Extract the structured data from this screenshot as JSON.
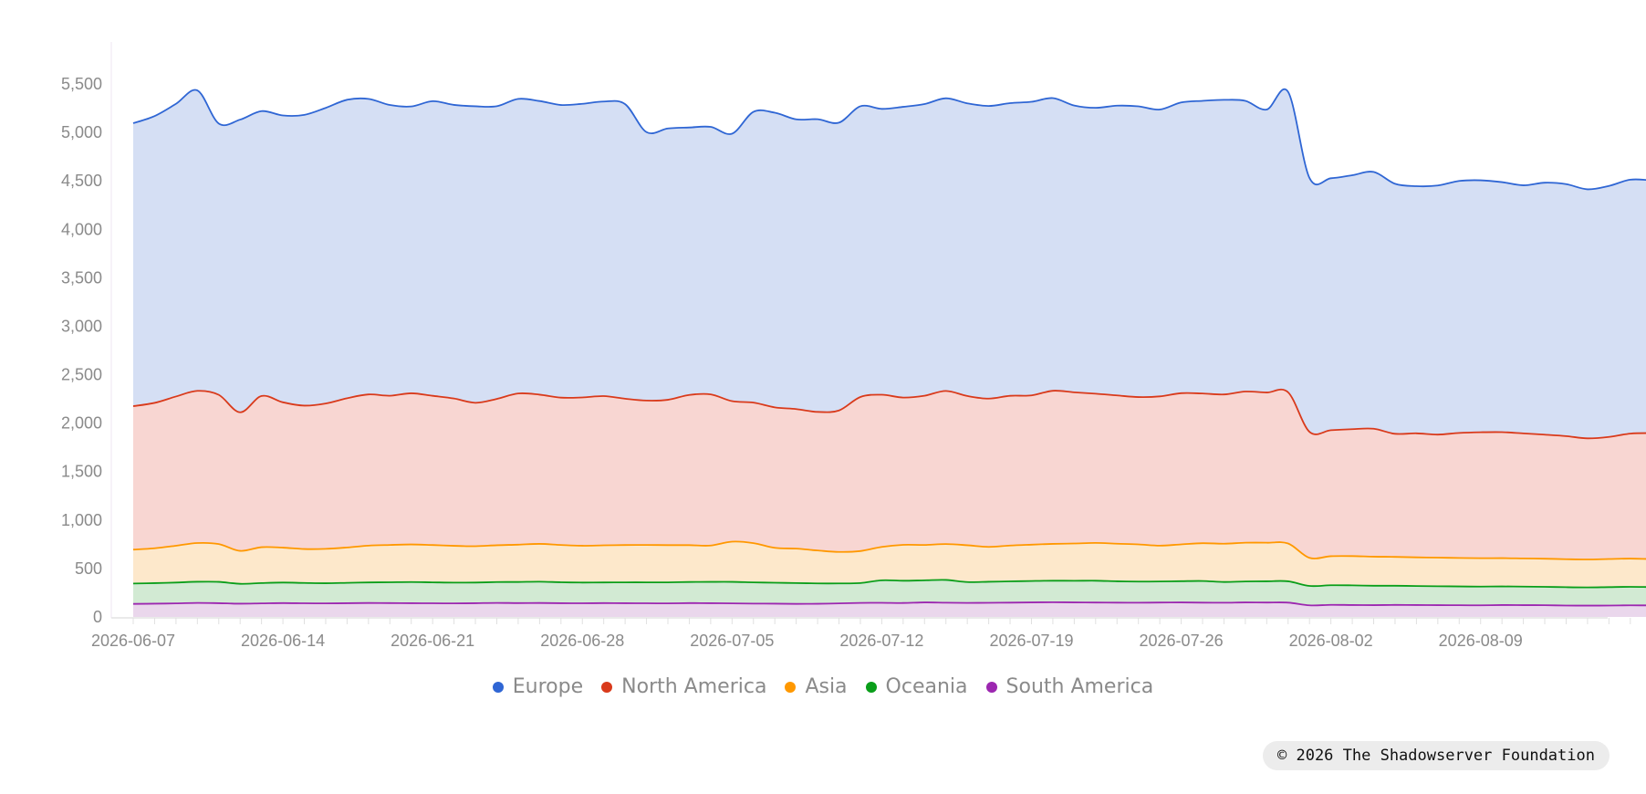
{
  "chart_data": {
    "type": "area",
    "stacked": true,
    "x_start": "2026-06-07",
    "x_end": "2026-08-12",
    "x_ticks": [
      "2026-06-07",
      "2026-06-14",
      "2026-06-21",
      "2026-06-28",
      "2026-07-05",
      "2026-07-12",
      "2026-07-19",
      "2026-07-26",
      "2026-08-02",
      "2026-08-09"
    ],
    "y_ticks": [
      "0",
      "500",
      "1,000",
      "1,500",
      "2,000",
      "2,500",
      "3,000",
      "3,500",
      "4,000",
      "4,500",
      "5,000",
      "5,500"
    ],
    "ylim": [
      0,
      5900
    ],
    "legend_position": "bottom",
    "series": [
      {
        "name": "South America",
        "color": "#9c27b0",
        "fill": "#ead7ec",
        "values": [
          135,
          137,
          140,
          145,
          142,
          137,
          140,
          143,
          141,
          140,
          142,
          144,
          143,
          142,
          141,
          140,
          142,
          145,
          143,
          144,
          142,
          141,
          143,
          142,
          141,
          140,
          143,
          142,
          140,
          138,
          137,
          135,
          136,
          140,
          145,
          146,
          144,
          150,
          147,
          145,
          146,
          148,
          150,
          152,
          150,
          149,
          148,
          147,
          149,
          150,
          148,
          147,
          150,
          149,
          148,
          120,
          125,
          123,
          122,
          124,
          123,
          122,
          121,
          120,
          123,
          122,
          121,
          118,
          117,
          118,
          120,
          119,
          118
        ]
      },
      {
        "name": "Oceania",
        "color": "#0a9e1a",
        "fill": "#d2ead3",
        "values": [
          210,
          212,
          215,
          218,
          220,
          205,
          210,
          212,
          210,
          208,
          210,
          212,
          215,
          218,
          216,
          214,
          213,
          215,
          218,
          220,
          216,
          214,
          213,
          215,
          216,
          217,
          218,
          220,
          222,
          219,
          216,
          215,
          210,
          206,
          205,
          232,
          230,
          228,
          235,
          215,
          217,
          219,
          221,
          222,
          223,
          225,
          220,
          218,
          217,
          219,
          223,
          214,
          216,
          219,
          220,
          200,
          202,
          203,
          200,
          198,
          196,
          195,
          194,
          193,
          192,
          191,
          190,
          189,
          188,
          190,
          191,
          189,
          188
        ]
      },
      {
        "name": "Asia",
        "color": "#ff9800",
        "fill": "#fde8cb",
        "values": [
          350,
          360,
          380,
          400,
          390,
          340,
          370,
          360,
          350,
          355,
          365,
          380,
          385,
          388,
          385,
          380,
          375,
          380,
          385,
          390,
          385,
          380,
          383,
          385,
          386,
          384,
          380,
          375,
          415,
          405,
          360,
          355,
          340,
          325,
          330,
          345,
          370,
          365,
          370,
          380,
          360,
          370,
          375,
          380,
          385,
          390,
          388,
          384,
          370,
          380,
          390,
          395,
          400,
          398,
          390,
          290,
          300,
          302,
          300,
          298,
          296,
          295,
          294,
          293,
          292,
          291,
          290,
          289,
          288,
          290,
          291,
          289,
          288
        ]
      },
      {
        "name": "North America",
        "color": "#d93a1b",
        "fill": "#f8d6d2",
        "values": [
          1480,
          1500,
          1540,
          1570,
          1540,
          1430,
          1560,
          1500,
          1480,
          1500,
          1540,
          1560,
          1540,
          1560,
          1540,
          1520,
          1480,
          1510,
          1560,
          1540,
          1520,
          1530,
          1540,
          1510,
          1490,
          1500,
          1550,
          1560,
          1450,
          1450,
          1450,
          1440,
          1430,
          1460,
          1590,
          1570,
          1520,
          1540,
          1580,
          1540,
          1530,
          1545,
          1540,
          1580,
          1560,
          1540,
          1530,
          1520,
          1540,
          1560,
          1545,
          1540,
          1560,
          1550,
          1560,
          1300,
          1300,
          1310,
          1320,
          1270,
          1280,
          1270,
          1290,
          1300,
          1300,
          1290,
          1280,
          1270,
          1250,
          1260,
          1290,
          1300,
          1300
        ]
      },
      {
        "name": "Europe",
        "color": "#2f66d4",
        "fill": "#d5dff4",
        "values": [
          2920,
          2960,
          3020,
          3100,
          2800,
          3020,
          2940,
          2960,
          3000,
          3050,
          3080,
          3050,
          3000,
          2960,
          3040,
          3030,
          3060,
          3020,
          3040,
          3030,
          3020,
          3030,
          3040,
          3040,
          2770,
          2800,
          2760,
          2760,
          2760,
          3000,
          3040,
          2990,
          3020,
          2970,
          3000,
          2950,
          3000,
          3010,
          3020,
          3020,
          3020,
          3020,
          3030,
          3020,
          2960,
          2950,
          2990,
          3000,
          2960,
          3000,
          3020,
          3040,
          3000,
          2920,
          3100,
          2620,
          2600,
          2620,
          2650,
          2580,
          2550,
          2570,
          2600,
          2600,
          2580,
          2560,
          2600,
          2600,
          2570,
          2590,
          2620,
          2610,
          2610
        ]
      }
    ]
  },
  "legend": [
    {
      "label": "Europe",
      "color": "#2f66d4"
    },
    {
      "label": "North America",
      "color": "#d93a1b"
    },
    {
      "label": "Asia",
      "color": "#ff9800"
    },
    {
      "label": "Oceania",
      "color": "#0a9e1a"
    },
    {
      "label": "South America",
      "color": "#9c27b0"
    }
  ],
  "footer": {
    "copyright": "© 2026 The Shadowserver Foundation"
  }
}
